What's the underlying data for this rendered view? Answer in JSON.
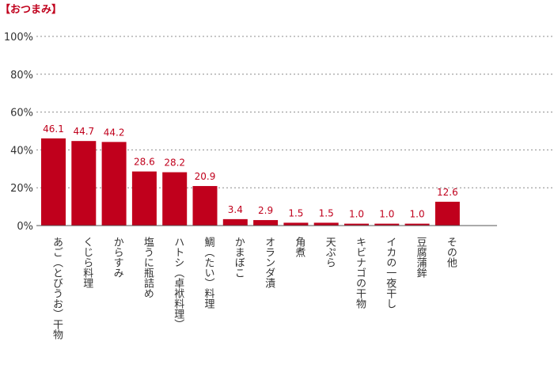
{
  "chart_data": {
    "type": "bar",
    "title": "【おつまみ】",
    "categories": [
      "あご（とびうお）干物",
      "くじら料理",
      "からすみ",
      "塩うに瓶詰め",
      "ハトシ（卓袱料理）",
      "鯛（たい）料理",
      "かまぼこ",
      "オランダ漬",
      "角煮",
      "天ぷら",
      "キビナゴの干物",
      "イカの一夜干し",
      "豆腐蒲鉾",
      "その他"
    ],
    "values": [
      46.1,
      44.7,
      44.2,
      28.6,
      28.2,
      20.9,
      3.4,
      2.9,
      1.5,
      1.5,
      1.0,
      1.0,
      1.0,
      12.6
    ],
    "value_labels": [
      "46.1",
      "44.7",
      "44.2",
      "28.6",
      "28.2",
      "20.9",
      "3.4",
      "2.9",
      "1.5",
      "1.5",
      "1.0",
      "1.0",
      "1.0",
      "12.6"
    ],
    "yticks": [
      "0%",
      "20%",
      "40%",
      "60%",
      "80%",
      "100%"
    ],
    "ylim": [
      0,
      100
    ],
    "grid": true,
    "colors": {
      "bar": "#c0001c",
      "label": "#c0001c",
      "title": "#c0001c",
      "axis_text": "#333333",
      "grid": "#8c8c8c"
    }
  }
}
